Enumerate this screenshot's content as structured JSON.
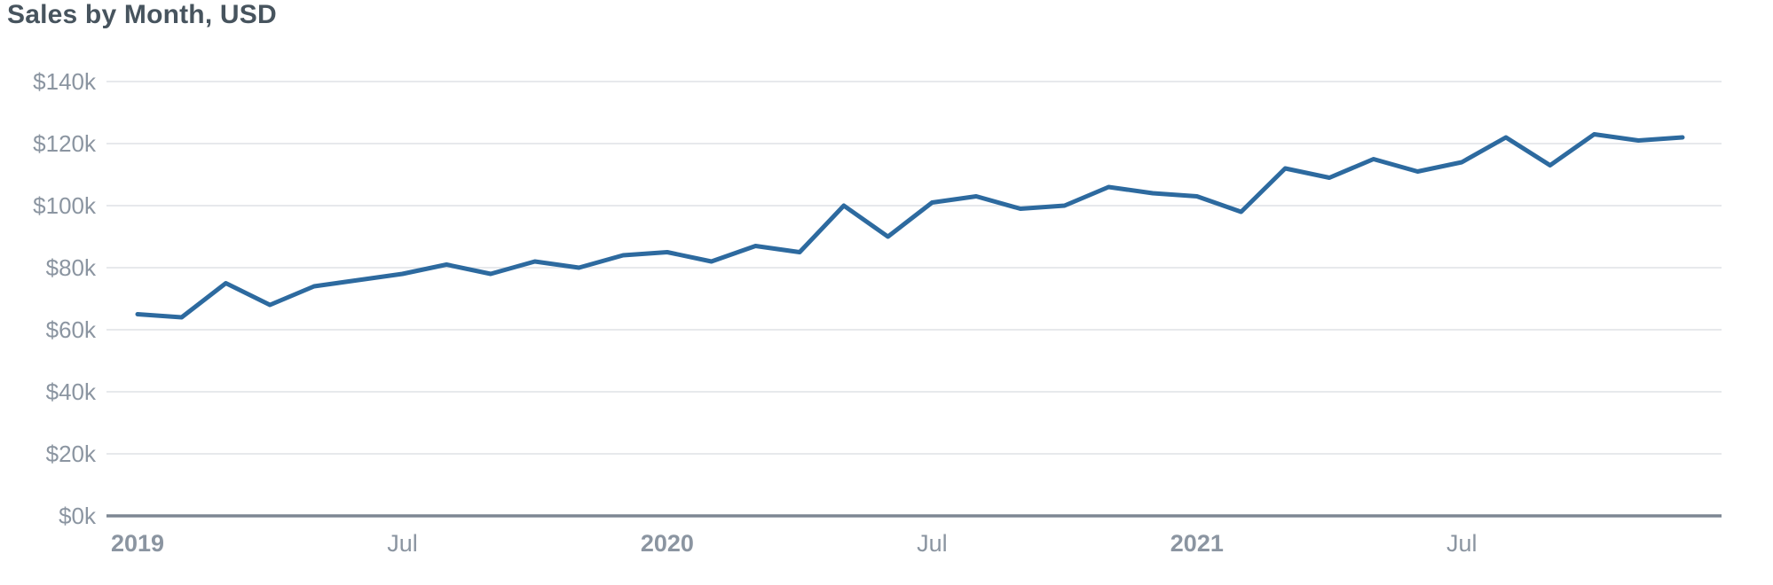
{
  "chart": {
    "title": "Sales by Month, USD"
  },
  "chart_data": {
    "type": "line",
    "title": "Sales by Month, USD",
    "series_name": "Sales",
    "value_unit": "USD thousands",
    "x": [
      "2019-01",
      "2019-02",
      "2019-03",
      "2019-04",
      "2019-05",
      "2019-06",
      "2019-07",
      "2019-08",
      "2019-09",
      "2019-10",
      "2019-11",
      "2019-12",
      "2020-01",
      "2020-02",
      "2020-03",
      "2020-04",
      "2020-05",
      "2020-06",
      "2020-07",
      "2020-08",
      "2020-09",
      "2020-10",
      "2020-11",
      "2020-12",
      "2021-01",
      "2021-02",
      "2021-03",
      "2021-04",
      "2021-05",
      "2021-06",
      "2021-07",
      "2021-08",
      "2021-09",
      "2021-10",
      "2021-11",
      "2021-12"
    ],
    "values": [
      65,
      64,
      75,
      68,
      74,
      76,
      78,
      81,
      78,
      82,
      80,
      84,
      85,
      82,
      87,
      85,
      100,
      90,
      101,
      103,
      99,
      100,
      106,
      104,
      103,
      98,
      112,
      109,
      115,
      111,
      114,
      122,
      113,
      123,
      121,
      122
    ],
    "ylim": [
      0,
      140
    ],
    "y_ticks": [
      {
        "value": 0,
        "label": "$0k"
      },
      {
        "value": 20,
        "label": "$20k"
      },
      {
        "value": 40,
        "label": "$40k"
      },
      {
        "value": 60,
        "label": "$60k"
      },
      {
        "value": 80,
        "label": "$80k"
      },
      {
        "value": 100,
        "label": "$100k"
      },
      {
        "value": 120,
        "label": "$120k"
      },
      {
        "value": 140,
        "label": "$140k"
      }
    ],
    "x_ticks": [
      {
        "index": 0,
        "label": "2019",
        "bold": true
      },
      {
        "index": 6,
        "label": "Jul",
        "bold": false
      },
      {
        "index": 12,
        "label": "2020",
        "bold": true
      },
      {
        "index": 18,
        "label": "Jul",
        "bold": false
      },
      {
        "index": 24,
        "label": "2021",
        "bold": true
      },
      {
        "index": 30,
        "label": "Jul",
        "bold": false
      }
    ],
    "grid": "horizontal",
    "legend": "none",
    "colors": {
      "line": "#2d6a9f",
      "title": "#47545e",
      "tick_label": "#8b95a1",
      "gridline": "#e7e9ec",
      "axis_line": "#7d8793",
      "background": "#ffffff"
    }
  }
}
